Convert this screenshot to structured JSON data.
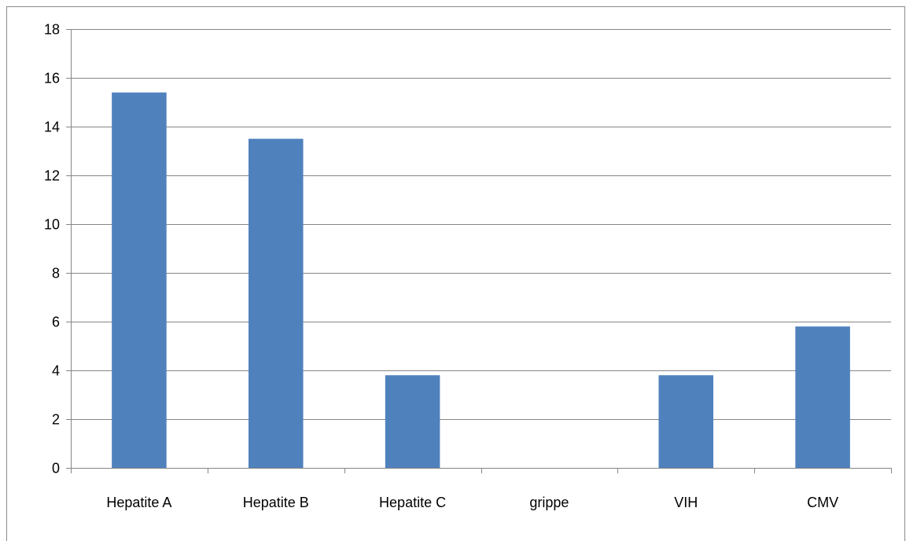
{
  "chart_data": {
    "type": "bar",
    "categories": [
      "Hepatite A",
      "Hepatite B",
      "Hepatite C",
      "grippe",
      "VIH",
      "CMV"
    ],
    "values": [
      15.4,
      13.5,
      3.8,
      0,
      3.8,
      5.8
    ],
    "title": "",
    "xlabel": "",
    "ylabel": "",
    "ylim": [
      0,
      18
    ],
    "yticks": [
      0,
      2,
      4,
      6,
      8,
      10,
      12,
      14,
      16,
      18
    ],
    "grid": true,
    "legend": "none",
    "bar_color": "#4f81bd",
    "gridline_color": "#868686"
  }
}
